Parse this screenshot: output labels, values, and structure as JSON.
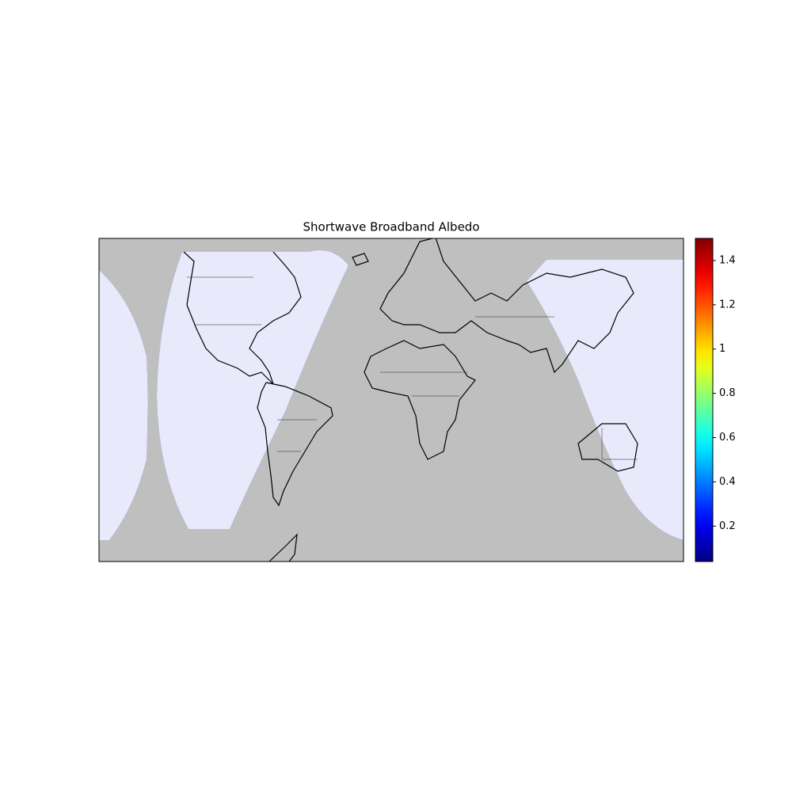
{
  "chart_data": {
    "type": "map",
    "title": "Shortwave Broadband Albedo",
    "colorbar": {
      "colormap": "jet",
      "lim": [
        0.04,
        1.5
      ],
      "ticks": [
        0.2,
        0.4,
        0.6,
        0.8,
        1.0,
        1.2,
        1.4
      ]
    }
  }
}
